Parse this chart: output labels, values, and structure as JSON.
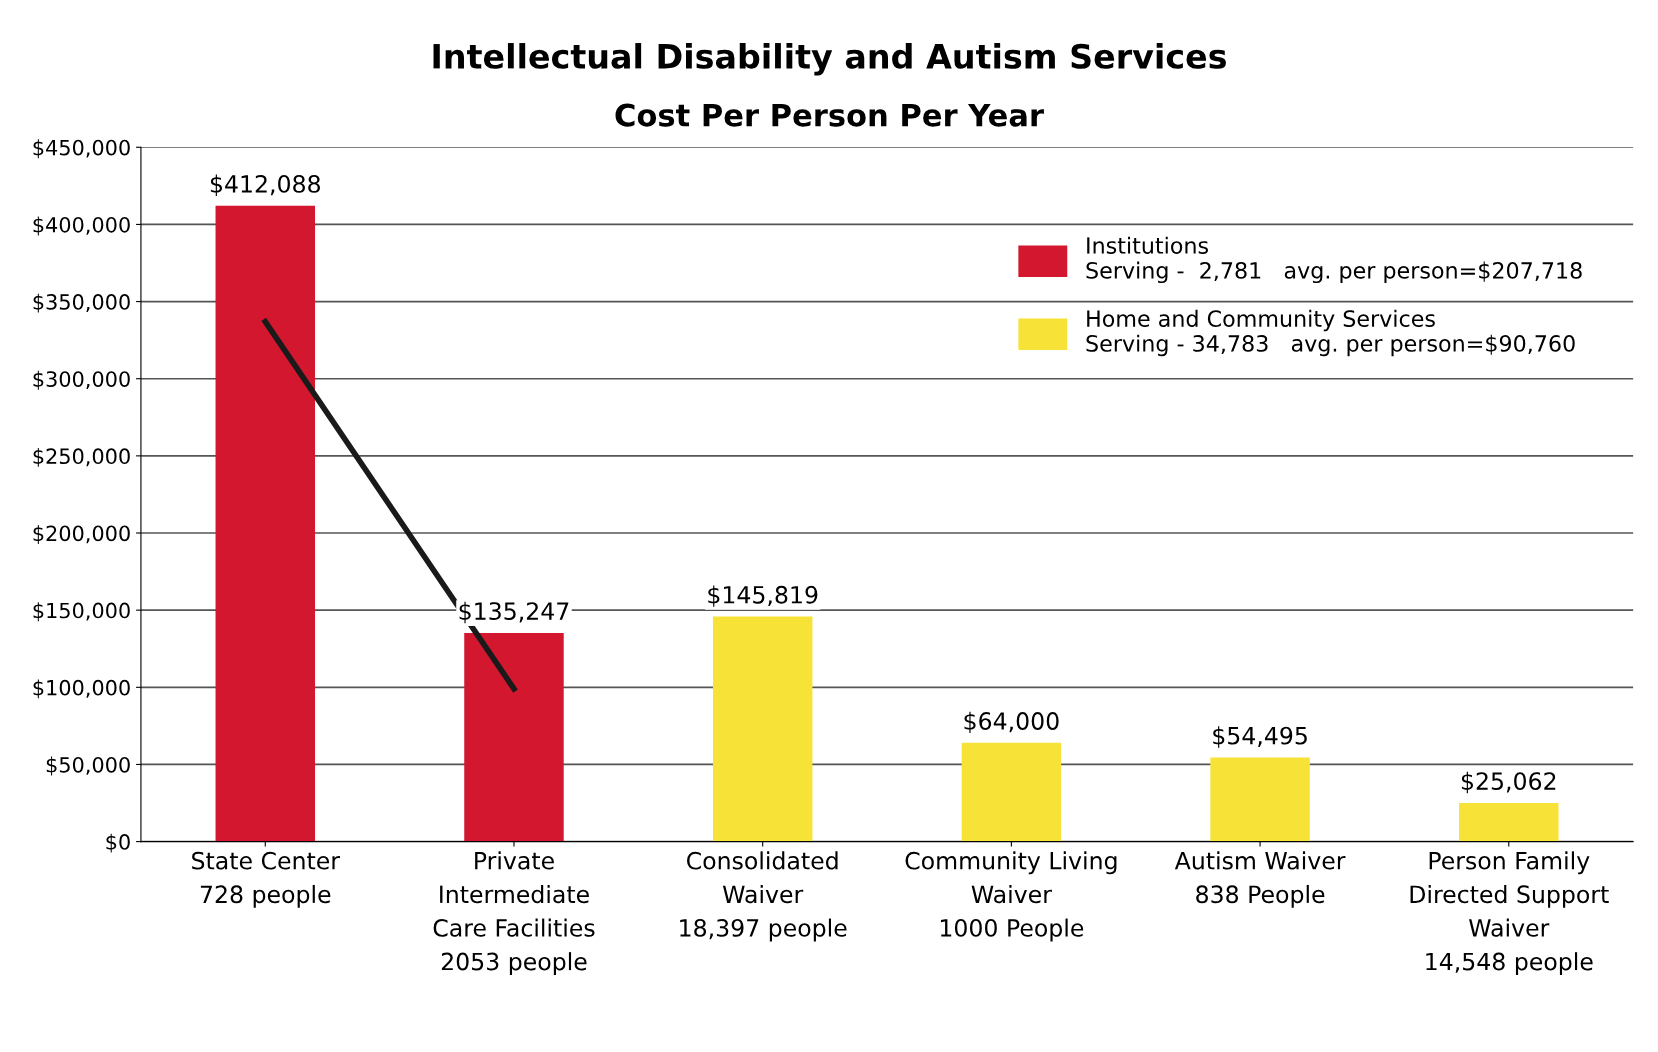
{
  "chart_data": {
    "type": "bar",
    "title": "Intellectual Disability and Autism Services",
    "subtitle": "Cost Per Person Per Year",
    "categories": [
      "State Center\n728 people",
      "Private\nIntermediate\nCare Facilities\n2053 people",
      "Consolidated\nWaiver\n18,397 people",
      "Community Living\nWaiver\n1000 People",
      "Autism Waiver\n838 People",
      "Person Family\nDirected Support\nWaiver\n14,548 people"
    ],
    "series": [
      {
        "name": "Institutions\nServing -  2,781   avg. per person=$207,718",
        "color": "#d2172f",
        "values": [
          412088,
          135247,
          null,
          null,
          null,
          null
        ],
        "value_labels": [
          "$412,088",
          "$135,247",
          null,
          null,
          null,
          null
        ]
      },
      {
        "name": "Home and Community Services\nServing - 34,783   avg. per person=$90,760",
        "color": "#f7e338",
        "values": [
          null,
          null,
          145819,
          64000,
          54495,
          25062
        ],
        "value_labels": [
          null,
          null,
          "$145,819",
          "$64,000",
          "$54,495",
          "$25,062"
        ]
      },
      {
        "type": "line",
        "color": "#1a1a1a",
        "values": [
          337000,
          99000,
          null,
          null,
          null,
          null
        ]
      }
    ],
    "ylim": [
      0,
      450000
    ],
    "yticks": [
      {
        "value": 0,
        "label": "$0"
      },
      {
        "value": 50000,
        "label": "$50,000"
      },
      {
        "value": 100000,
        "label": "$100,000"
      },
      {
        "value": 150000,
        "label": "$150,000"
      },
      {
        "value": 200000,
        "label": "$200,000"
      },
      {
        "value": 250000,
        "label": "$250,000"
      },
      {
        "value": 300000,
        "label": "$300,000"
      },
      {
        "value": 350000,
        "label": "$350,000"
      },
      {
        "value": 400000,
        "label": "$400,000"
      },
      {
        "value": 450000,
        "label": "$450,000"
      }
    ],
    "grid": "y",
    "legend": "top right"
  }
}
